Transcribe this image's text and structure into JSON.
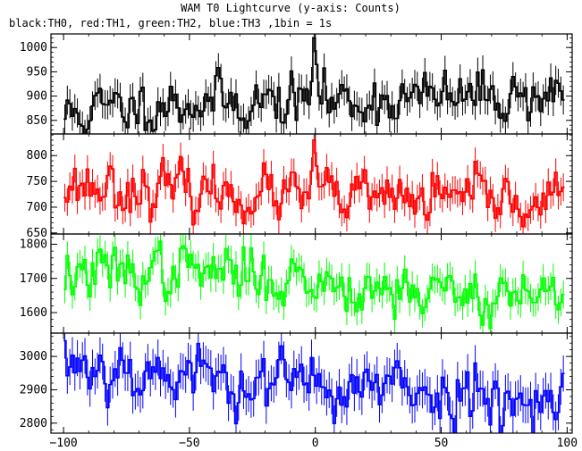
{
  "title": "WAM T0 Lightcurve (y-axis: Counts)",
  "subtitle": "black:TH0, red:TH1, green:TH2, blue:TH3 ,1bin = 1s",
  "chart_data": {
    "type": "line",
    "title": "WAM T0 Lightcurve (y-axis: Counts)",
    "subtitle": "black:TH0, red:TH1, green:TH2, blue:TH3 ,1bin = 1s",
    "xlim": [
      -105,
      102
    ],
    "xticks": [
      -100,
      -50,
      0,
      50,
      100
    ],
    "xtick_labels": [
      "−100",
      "−50",
      "0",
      "50",
      "100"
    ],
    "x_start": -100,
    "x_end": 98,
    "bin": 1,
    "panels": [
      {
        "series": "TH0",
        "color": "#000000",
        "ylim": [
          822,
          1028
        ],
        "yticks": [
          850,
          900,
          950,
          1000
        ],
        "ytick_labels": [
          "850",
          "900",
          "950",
          "1000"
        ],
        "mean": 893,
        "noise": 26,
        "errbar": 30,
        "trend": [
          [
            -100,
            860
          ],
          [
            -60,
            888
          ],
          [
            0,
            888
          ],
          [
            100,
            905
          ]
        ],
        "spikes": [
          [
            -2,
            930
          ],
          [
            -1,
            1020
          ],
          [
            0,
            965
          ],
          [
            1,
            900
          ]
        ],
        "seed": 11
      },
      {
        "series": "TH1",
        "color": "#ff0000",
        "ylim": [
          648,
          842
        ],
        "yticks": [
          650,
          700,
          750,
          800
        ],
        "ytick_labels": [
          "650",
          "700",
          "750",
          "800"
        ],
        "mean": 722,
        "noise": 24,
        "errbar": 27,
        "trend": [
          [
            -100,
            745
          ],
          [
            -40,
            728
          ],
          [
            0,
            718
          ],
          [
            100,
            712
          ]
        ],
        "spikes": [
          [
            -2,
            770
          ],
          [
            -1,
            830
          ],
          [
            0,
            780
          ],
          [
            1,
            740
          ]
        ],
        "seed": 23
      },
      {
        "series": "TH2",
        "color": "#00ff00",
        "ylim": [
          1540,
          1830
        ],
        "yticks": [
          1600,
          1700,
          1800
        ],
        "ytick_labels": [
          "1600",
          "1700",
          "1800"
        ],
        "mean": 1680,
        "noise": 38,
        "errbar": 41,
        "trend": [
          [
            -100,
            1710
          ],
          [
            -50,
            1725
          ],
          [
            0,
            1690
          ],
          [
            50,
            1660
          ],
          [
            100,
            1650
          ]
        ],
        "spikes": [],
        "seed": 37
      },
      {
        "series": "TH3",
        "color": "#0000ff",
        "ylim": [
          2770,
          3070
        ],
        "yticks": [
          2800,
          2900,
          3000
        ],
        "ytick_labels": [
          "2800",
          "2900",
          "3000"
        ],
        "mean": 2920,
        "noise": 44,
        "errbar": 54,
        "trend": [
          [
            -100,
            2985
          ],
          [
            -50,
            2940
          ],
          [
            0,
            2915
          ],
          [
            50,
            2890
          ],
          [
            100,
            2880
          ]
        ],
        "spikes": [],
        "seed": 53
      }
    ]
  }
}
